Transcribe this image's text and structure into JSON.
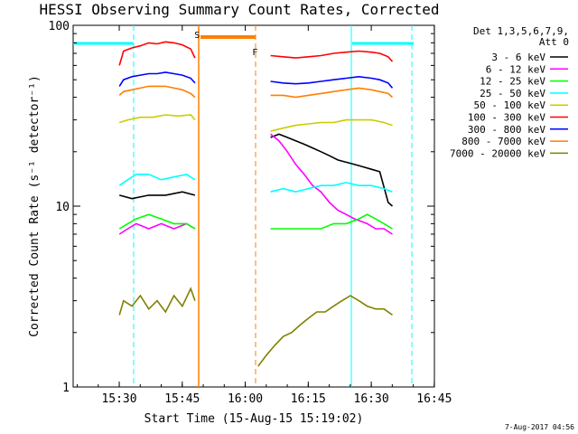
{
  "chart_data": {
    "type": "line",
    "title": "HESSI Observing Summary Count Rates, Corrected",
    "xlabel": "Start Time (15-Aug-15 15:19:02)",
    "ylabel": "Corrected Count Rate (s⁻¹ detector⁻¹)",
    "yscale": "log",
    "ylim": [
      1,
      100
    ],
    "xlim_minutes": [
      0,
      86
    ],
    "x_ticks": [
      {
        "label": "15:30",
        "t": 10.97
      },
      {
        "label": "15:45",
        "t": 25.97
      },
      {
        "label": "16:00",
        "t": 40.97
      },
      {
        "label": "16:15",
        "t": 55.97
      },
      {
        "label": "16:30",
        "t": 70.97
      },
      {
        "label": "16:45",
        "t": 85.97
      }
    ],
    "y_ticks": [
      {
        "label": "1",
        "v": 1
      },
      {
        "label": "10",
        "v": 10
      },
      {
        "label": "100",
        "v": 100
      }
    ],
    "legend_header": [
      "Det 1,3,5,6,7,9,",
      "Att 0"
    ],
    "legend_position": "right",
    "markers": [
      {
        "label": "S",
        "t": 30.8,
        "color": "#ff7f00"
      },
      {
        "label": "F",
        "t": 44.6,
        "color": "#ff7f00"
      }
    ],
    "series": [
      {
        "name": "3 - 6 keV",
        "color": "#000000",
        "x": [
          11,
          14,
          18,
          22,
          26,
          29,
          47,
          49,
          51,
          53,
          55,
          57,
          59,
          61,
          63,
          65,
          67,
          69,
          71,
          73,
          75,
          76
        ],
        "y": [
          11.5,
          11,
          11.5,
          11.5,
          12,
          11.5,
          24,
          25,
          24,
          23,
          22,
          21,
          20,
          19,
          18,
          17.5,
          17,
          16.5,
          16,
          15.5,
          10.5,
          10
        ]
      },
      {
        "name": "6 - 12 keV",
        "color": "#ff00ff",
        "x": [
          11,
          13,
          15,
          18,
          21,
          24,
          27,
          29,
          47,
          49,
          51,
          53,
          55,
          57,
          59,
          61,
          63,
          65,
          67,
          70,
          72,
          74,
          76
        ],
        "y": [
          7,
          7.5,
          8,
          7.5,
          8,
          7.5,
          8,
          7.5,
          25,
          23,
          20,
          17,
          15,
          13,
          12,
          10.5,
          9.5,
          9,
          8.5,
          8,
          7.5,
          7.5,
          7
        ]
      },
      {
        "name": "12 - 25 keV",
        "color": "#00ff00",
        "x": [
          11,
          13,
          15,
          18,
          21,
          24,
          27,
          29,
          47,
          50,
          53,
          56,
          59,
          62,
          65,
          68,
          70,
          72,
          74,
          76
        ],
        "y": [
          7.5,
          8,
          8.5,
          9,
          8.5,
          8,
          8,
          7.5,
          7.5,
          7.5,
          7.5,
          7.5,
          7.5,
          8,
          8,
          8.5,
          9,
          8.5,
          8,
          7.5
        ]
      },
      {
        "name": "25 - 50 keV",
        "color": "#00ffff",
        "x": [
          11,
          13,
          15,
          18,
          21,
          24,
          27,
          29,
          47,
          50,
          53,
          56,
          59,
          62,
          65,
          68,
          71,
          74,
          76
        ],
        "y": [
          13,
          14,
          15,
          15,
          14,
          14.5,
          15,
          14,
          12,
          12.5,
          12,
          12.5,
          13,
          13,
          13.5,
          13,
          13,
          12.5,
          12
        ]
      },
      {
        "name": "50 - 100 keV",
        "color": "#cccc00",
        "x": [
          11,
          13,
          16,
          19,
          22,
          25,
          28,
          29,
          47,
          50,
          53,
          56,
          59,
          62,
          65,
          68,
          71,
          74,
          76
        ],
        "y": [
          29,
          30,
          31,
          31,
          32,
          31.5,
          32,
          30,
          26,
          27,
          28,
          28.5,
          29,
          29,
          30,
          30,
          30,
          29,
          28
        ]
      },
      {
        "name": "100 - 300 keV",
        "color": "#ff0000",
        "x": [
          11,
          12,
          14,
          16,
          18,
          20,
          22,
          24,
          26,
          28,
          29,
          47,
          50,
          53,
          56,
          59,
          62,
          65,
          68,
          71,
          73,
          75,
          76
        ],
        "y": [
          60,
          72,
          75,
          77,
          80,
          79,
          81,
          80,
          78,
          74,
          66,
          68,
          67,
          66,
          67,
          68,
          70,
          71,
          72,
          71,
          70,
          67,
          63
        ]
      },
      {
        "name": "300 - 800 keV",
        "color": "#0000ff",
        "x": [
          11,
          12,
          14,
          16,
          18,
          20,
          22,
          24,
          26,
          28,
          29,
          47,
          50,
          53,
          56,
          59,
          62,
          65,
          68,
          71,
          73,
          75,
          76
        ],
        "y": [
          46,
          50,
          52,
          53,
          54,
          54,
          55,
          54,
          53,
          51,
          48,
          49,
          48,
          47.5,
          48,
          49,
          50,
          51,
          52,
          51,
          50,
          48,
          45
        ]
      },
      {
        "name": "800 - 7000 keV",
        "color": "#ff7f00",
        "x": [
          11,
          12,
          14,
          16,
          18,
          20,
          22,
          24,
          26,
          28,
          29,
          47,
          50,
          53,
          56,
          59,
          62,
          65,
          68,
          71,
          73,
          75,
          76
        ],
        "y": [
          41,
          43,
          44,
          45,
          46,
          46,
          46,
          45,
          44,
          42,
          40,
          41,
          41,
          40,
          41,
          42,
          43,
          44,
          45,
          44,
          43,
          42,
          40
        ]
      },
      {
        "name": "7000 - 20000 keV",
        "color": "#808000",
        "x": [
          11,
          12,
          14,
          16,
          18,
          20,
          22,
          24,
          26,
          28,
          29,
          44,
          46,
          48,
          50,
          52,
          54,
          56,
          58,
          60,
          62,
          64,
          66,
          68,
          70,
          72,
          74,
          76
        ],
        "y": [
          2.5,
          3,
          2.8,
          3.2,
          2.7,
          3,
          2.6,
          3.2,
          2.8,
          3.5,
          3,
          1.3,
          1.5,
          1.7,
          1.9,
          2,
          2.2,
          2.4,
          2.6,
          2.6,
          2.8,
          3,
          3.2,
          3,
          2.8,
          2.7,
          2.7,
          2.5
        ]
      }
    ],
    "footer_date": "7-Aug-2017 04:56"
  }
}
